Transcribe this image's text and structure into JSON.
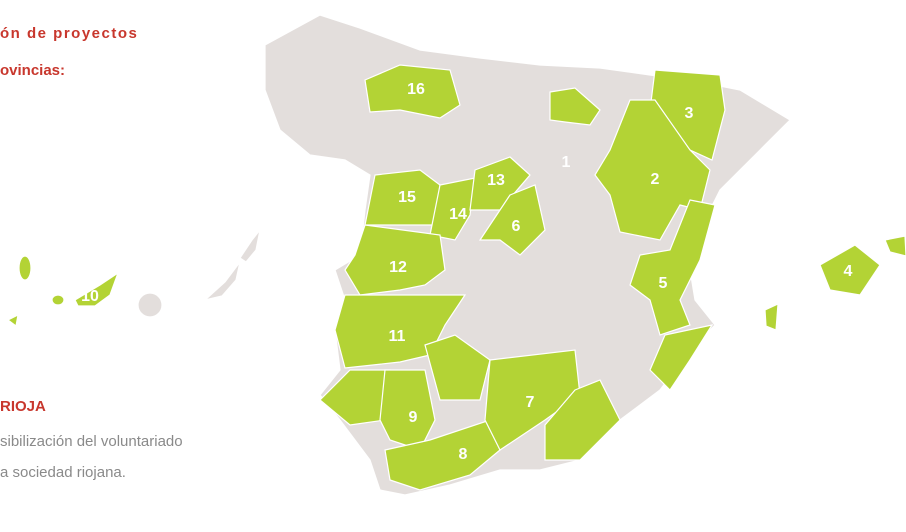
{
  "header": {
    "lines": [
      "ón de proyectos",
      "ovincias:"
    ]
  },
  "map": {
    "labels": [
      "1",
      "2",
      "3",
      "4",
      "5",
      "6",
      "7",
      "8",
      "9",
      "10",
      "11",
      "12",
      "13",
      "14",
      "15",
      "16"
    ]
  },
  "detail": {
    "title": "RIOJA",
    "lines": [
      "sibilización del voluntariado",
      "a sociedad riojana."
    ]
  }
}
